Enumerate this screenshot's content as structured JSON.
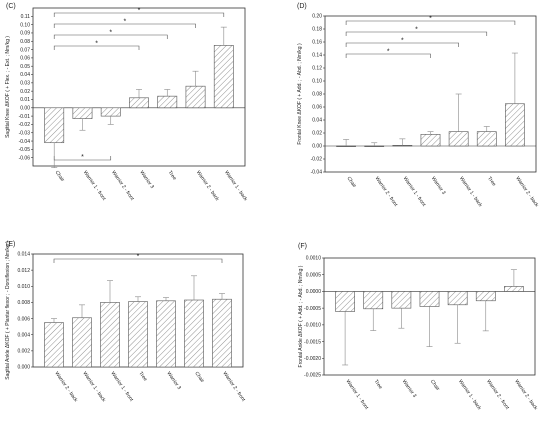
{
  "chart_data": [
    {
      "panel": "(C)",
      "type": "bar",
      "ylabel": "Sagittal Knee ΔKOF ( + Flex. ; - Ext. ; Nm/kg )",
      "ylim": [
        -0.07,
        0.12
      ],
      "yticks": [
        -0.06,
        -0.05,
        -0.04,
        -0.03,
        -0.02,
        -0.01,
        0.0,
        0.01,
        0.02,
        0.03,
        0.04,
        0.05,
        0.06,
        0.07,
        0.08,
        0.09,
        0.1,
        0.11
      ],
      "ytick_labels": [
        "-0.06",
        "-0.05",
        "-0.04",
        "-0.03",
        "-0.02",
        "-0.01",
        "0.00",
        "0.01",
        "0.02",
        "0.03",
        "0.04",
        "0.05",
        "0.06",
        "0.07",
        "0.08",
        "0.09",
        "0.10",
        "0.11"
      ],
      "categories": [
        "Chair",
        "Warrior 1 - front",
        "Warrior 2 - front",
        "Warrior 3",
        "Tree",
        "Warrior 2 - back",
        "Warrior 1 - back"
      ],
      "values": [
        -0.042,
        -0.013,
        -0.01,
        0.012,
        0.014,
        0.026,
        0.075
      ],
      "errors": [
        0.03,
        0.014,
        0.01,
        0.01,
        0.008,
        0.018,
        0.022
      ],
      "significance_marker": "*",
      "significance_above": [
        3,
        4,
        5,
        6
      ],
      "significance_below": [
        2
      ]
    },
    {
      "panel": "(D)",
      "type": "bar",
      "ylabel": "Frontal Knee ΔKOF ( + Add. ; - Abd. ; Nm/kg )",
      "ylim": [
        -0.04,
        0.2
      ],
      "yticks": [
        -0.04,
        -0.02,
        0.0,
        0.02,
        0.04,
        0.06,
        0.08,
        0.1,
        0.12,
        0.14,
        0.16,
        0.18,
        0.2
      ],
      "ytick_labels": [
        "-0.04",
        "-0.02",
        "0.00",
        "0.02",
        "0.04",
        "0.06",
        "0.08",
        "0.10",
        "0.12",
        "0.14",
        "0.16",
        "0.18",
        "0.20"
      ],
      "categories": [
        "Chair",
        "Warrior 2 - front",
        "Warrior 1 - front",
        "Warrior 3",
        "Warrior 1 - back",
        "Tree",
        "Warrior 2 - back"
      ],
      "values": [
        0.0,
        0.0,
        0.001,
        0.018,
        0.022,
        0.022,
        0.065
      ],
      "errors": [
        0.01,
        0.005,
        0.01,
        0.004,
        0.058,
        0.008,
        0.078
      ],
      "significance_marker": "*",
      "significance_above": [
        3,
        4,
        5,
        6
      ]
    },
    {
      "panel": "(E)",
      "type": "bar",
      "ylabel": "Sagittal Ankle ΔKOF ( + Plantar flexor ; - Dorsiflexion ; Nm/kg )",
      "ylim": [
        0.0,
        0.014
      ],
      "yticks": [
        0.0,
        0.002,
        0.004,
        0.006,
        0.008,
        0.01,
        0.012,
        0.014
      ],
      "ytick_labels": [
        "0.000",
        "0.002",
        "0.004",
        "0.006",
        "0.008",
        "0.010",
        "0.012",
        "0.014"
      ],
      "categories": [
        "Warrior 2 - back",
        "Warrior 1 - back",
        "Warrior 1 - front",
        "Tree",
        "Warrior 3",
        "Chair",
        "Warrior 2 - front"
      ],
      "values": [
        0.0055,
        0.0061,
        0.008,
        0.0081,
        0.0082,
        0.0083,
        0.0084
      ],
      "errors": [
        0.0005,
        0.0016,
        0.0027,
        0.0006,
        0.0004,
        0.003,
        0.0007
      ],
      "significance_marker": "*",
      "significance_above": [
        6
      ]
    },
    {
      "panel": "(F)",
      "type": "bar",
      "ylabel": "Frontal Ankle ΔKOF ( + Add. ; - Abd. ; Nm/kg )",
      "ylim": [
        -0.0025,
        0.001
      ],
      "yticks": [
        -0.0025,
        -0.002,
        -0.0015,
        -0.001,
        -0.0005,
        0.0,
        0.0005,
        0.001
      ],
      "ytick_labels": [
        "-0.0025",
        "-0.0020",
        "-0.0015",
        "-0.0010",
        "-0.0005",
        "0.0000",
        "0.0005",
        "0.0010"
      ],
      "categories": [
        "Warrior 1 - front",
        "Tree",
        "Warrior 3",
        "Chair",
        "Warrior 1 - back",
        "Warrior 2 - front",
        "Warrior 2 - back"
      ],
      "values": [
        -0.0006,
        -0.00052,
        -0.0005,
        -0.00045,
        -0.0004,
        -0.00028,
        0.00015
      ],
      "errors": [
        0.0016,
        0.00065,
        0.0006,
        0.0012,
        0.00115,
        0.0009,
        0.0005
      ]
    }
  ]
}
